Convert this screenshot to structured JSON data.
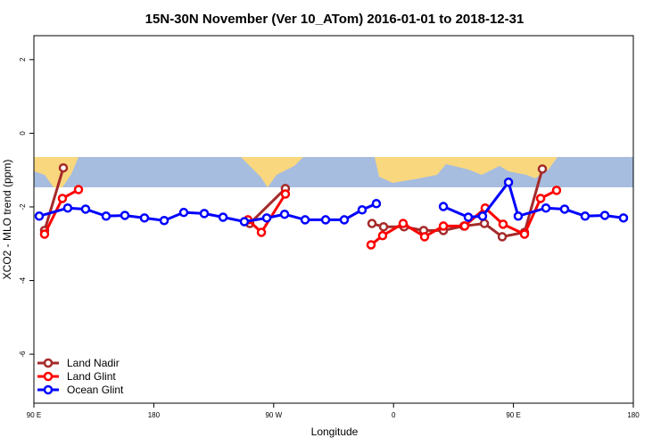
{
  "chart_data": {
    "type": "line",
    "title": "15N-30N November (Ver 10_ATom)   2016-01-01 to 2018-12-31",
    "x_label": "Longitude",
    "y_label": "XCO2 - MLO trend (ppm)",
    "xlim": [
      90,
      540
    ],
    "xticks": [
      {
        "value": 90,
        "label": "90 E"
      },
      180,
      {
        "value": 270,
        "label": "90 W"
      },
      {
        "value": 360,
        "label": "0"
      },
      {
        "value": 450,
        "label": "90 E"
      },
      {
        "value": 540,
        "label": "180"
      }
    ],
    "ylim": [
      -7.33,
      2.65
    ],
    "yticks": [
      2,
      0,
      -2,
      -4,
      -6
    ],
    "legend": "bottom-left",
    "series": [
      {
        "name": "Land Nadir",
        "color": "#a52a2a",
        "x": [
          98,
          112.1,
          null,
          252.1,
          278.8,
          null,
          343.8,
          352.5,
          367.9,
          382.6,
          397.4,
          412.8,
          428.2,
          441.6,
          458.3,
          471.7
        ],
        "values": [
          -2.64,
          -0.94,
          null,
          -2.45,
          -1.5,
          null,
          -2.45,
          -2.54,
          -2.54,
          -2.64,
          -2.64,
          -2.52,
          -2.45,
          -2.81,
          -2.69,
          -0.97
        ]
      },
      {
        "name": "Land Glint",
        "color": "#ff0000",
        "x": [
          98,
          111.4,
          123.5,
          null,
          250.7,
          260.8,
          278.8,
          null,
          343.1,
          351.8,
          367.2,
          383.3,
          397.4,
          413.4,
          428.8,
          442.2,
          458.3,
          470.4,
          482.4
        ],
        "values": [
          -2.74,
          -1.77,
          -1.53,
          null,
          -2.35,
          -2.69,
          -1.65,
          null,
          -3.03,
          -2.78,
          -2.45,
          -2.81,
          -2.52,
          -2.52,
          -2.03,
          -2.47,
          -2.74,
          -1.77,
          -1.55
        ]
      },
      {
        "name": "Ocean Glint",
        "color": "#0000ff",
        "x": [
          94,
          115.4,
          128.8,
          144.2,
          158.3,
          173,
          187.8,
          202.5,
          217.9,
          232,
          248,
          264.8,
          278.2,
          293.6,
          309,
          323,
          336.4,
          347.1,
          null,
          397.4,
          416.1,
          426.8,
          446.3,
          453.6,
          474.4,
          488.4,
          503.8,
          518.6,
          532.6
        ],
        "values": [
          -2.25,
          -2.03,
          -2.06,
          -2.25,
          -2.23,
          -2.3,
          -2.37,
          -2.15,
          -2.18,
          -2.28,
          -2.4,
          -2.3,
          -2.2,
          -2.35,
          -2.35,
          -2.35,
          -2.08,
          -1.91,
          null,
          -1.99,
          -2.28,
          -2.25,
          -1.33,
          -2.25,
          -2.03,
          -2.06,
          -2.25,
          -2.23,
          -2.3
        ]
      }
    ]
  }
}
